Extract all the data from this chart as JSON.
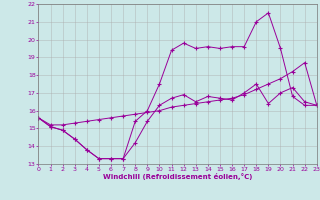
{
  "xlabel": "Windchill (Refroidissement éolien,°C)",
  "xlim": [
    0,
    23
  ],
  "ylim": [
    13,
    22
  ],
  "yticks": [
    13,
    14,
    15,
    16,
    17,
    18,
    19,
    20,
    21,
    22
  ],
  "xticks": [
    0,
    1,
    2,
    3,
    4,
    5,
    6,
    7,
    8,
    9,
    10,
    11,
    12,
    13,
    14,
    15,
    16,
    17,
    18,
    19,
    20,
    21,
    22,
    23
  ],
  "bg_color": "#cce8e8",
  "line_color": "#990099",
  "grid_color": "#aaaaaa",
  "line1_x": [
    0,
    1,
    2,
    3,
    4,
    5,
    6,
    7,
    8,
    9,
    10,
    11,
    12,
    13,
    14,
    15,
    16,
    17,
    18,
    19,
    20,
    21,
    22,
    23
  ],
  "line1_y": [
    15.6,
    15.1,
    14.9,
    14.4,
    13.8,
    13.3,
    13.3,
    13.3,
    14.2,
    15.4,
    16.3,
    16.7,
    16.9,
    16.5,
    16.8,
    16.7,
    16.6,
    17.0,
    17.5,
    16.4,
    17.0,
    17.3,
    16.5,
    16.3
  ],
  "line2_x": [
    0,
    1,
    2,
    3,
    4,
    5,
    6,
    7,
    8,
    9,
    10,
    11,
    12,
    13,
    14,
    15,
    16,
    17,
    18,
    19,
    20,
    21,
    22,
    23
  ],
  "line2_y": [
    15.6,
    15.1,
    14.9,
    14.4,
    13.8,
    13.3,
    13.3,
    13.3,
    15.4,
    16.0,
    17.5,
    19.4,
    19.8,
    19.5,
    19.6,
    19.5,
    19.6,
    19.6,
    21.0,
    21.5,
    19.5,
    16.8,
    16.3,
    16.3
  ],
  "line3_x": [
    0,
    1,
    2,
    3,
    4,
    5,
    6,
    7,
    8,
    9,
    10,
    11,
    12,
    13,
    14,
    15,
    16,
    17,
    18,
    19,
    20,
    21,
    22,
    23
  ],
  "line3_y": [
    15.6,
    15.2,
    15.2,
    15.3,
    15.4,
    15.5,
    15.6,
    15.7,
    15.8,
    15.9,
    16.0,
    16.2,
    16.3,
    16.4,
    16.5,
    16.6,
    16.7,
    16.9,
    17.2,
    17.5,
    17.8,
    18.2,
    18.7,
    16.3
  ]
}
